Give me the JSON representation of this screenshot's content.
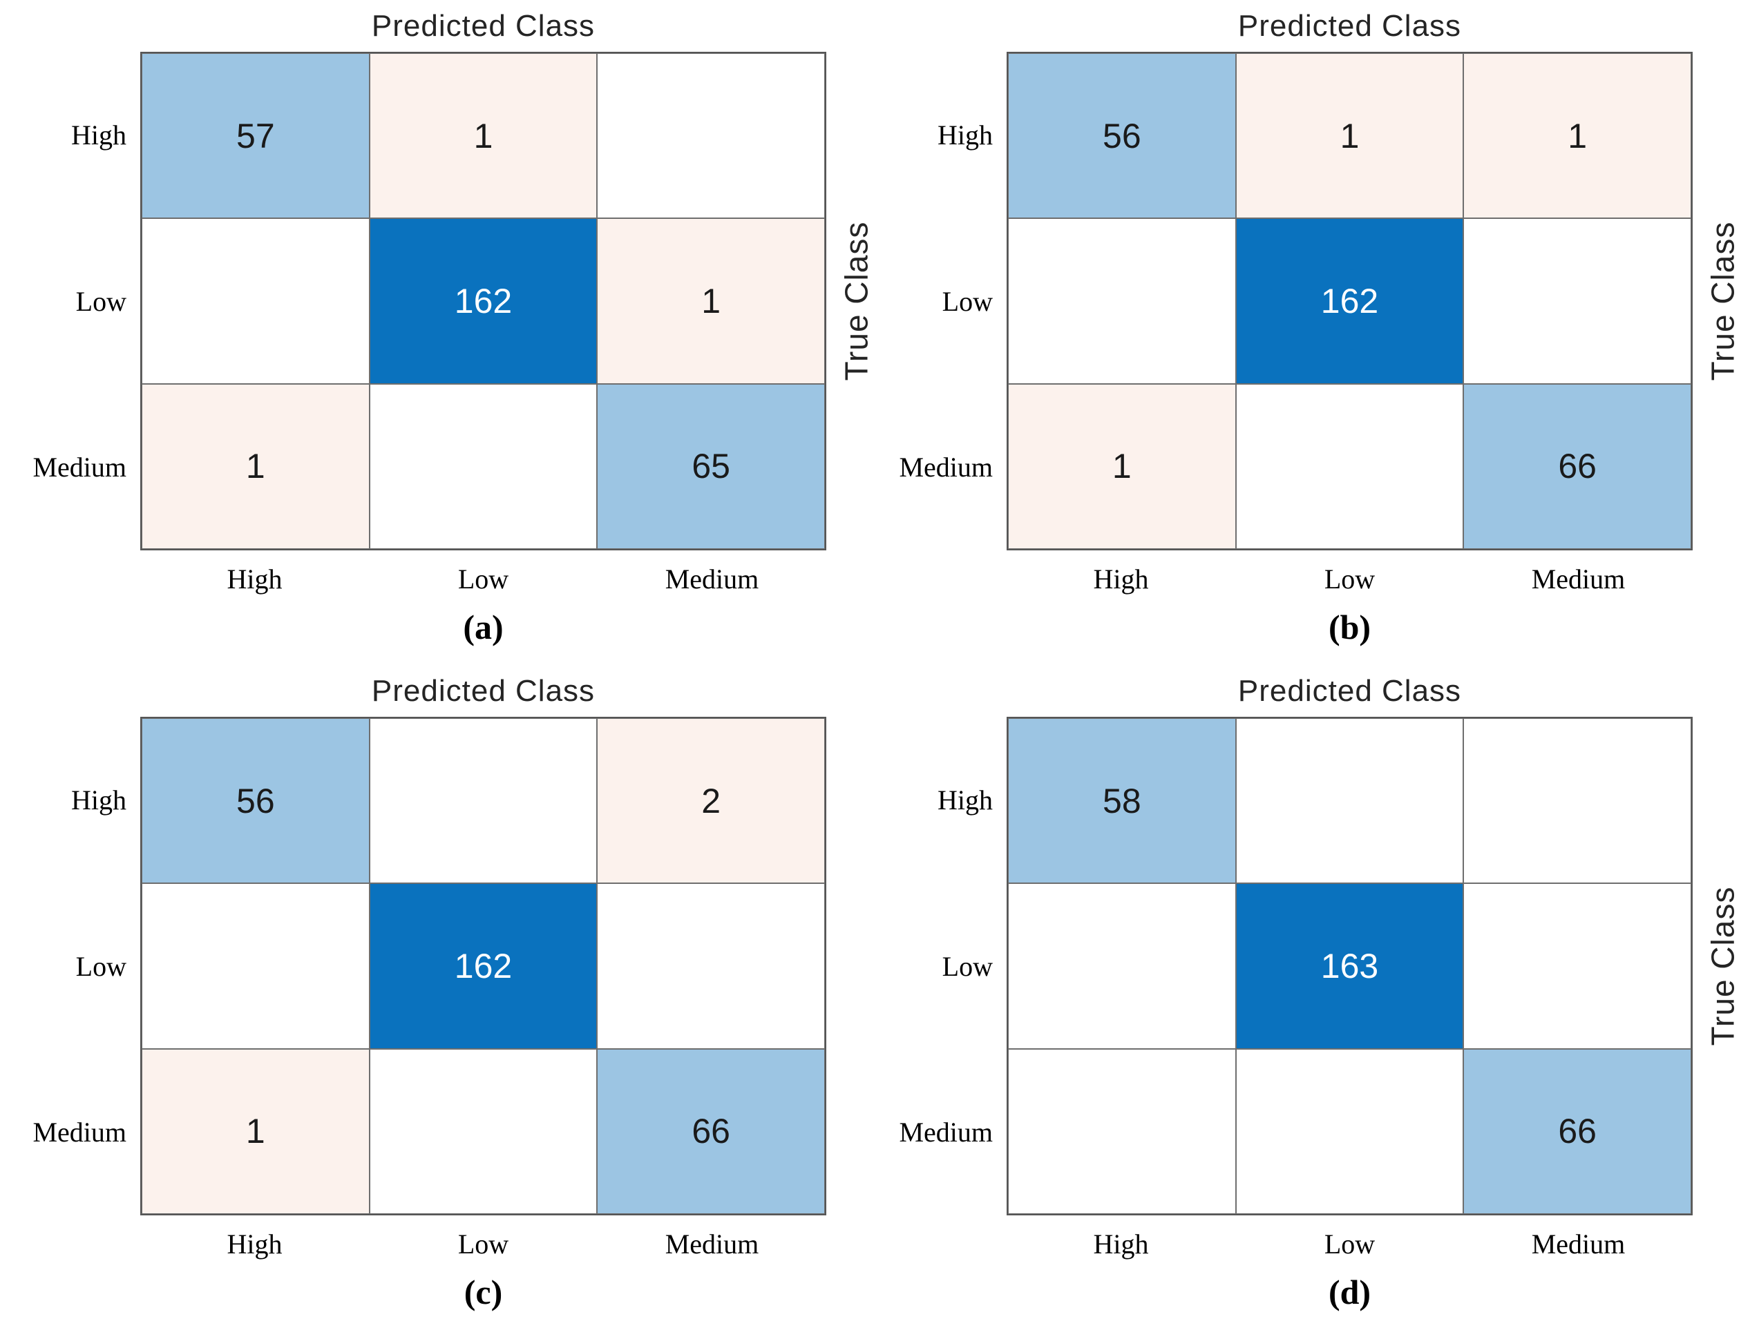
{
  "figure": {
    "background": "#FFFFFF"
  },
  "palette": {
    "diag_strong": "#0A72BE",
    "diag_light": "#9CC5E3",
    "off_tint": "#FCF2ED",
    "empty": "#FFFFFF",
    "text_on_strong": "#FFFFFF",
    "text_default": "#1A1A1A",
    "grid_line": "#6E6E6E"
  },
  "chart_data": [
    {
      "type": "heatmap",
      "subtype": "confusion-matrix",
      "caption": "(a)",
      "title": "Predicted Class",
      "ylabel": "True Class",
      "rows": [
        "High",
        "Low",
        "Medium"
      ],
      "cols": [
        "High",
        "Low",
        "Medium"
      ],
      "matrix": [
        [
          57,
          1,
          0
        ],
        [
          0,
          162,
          1
        ],
        [
          1,
          0,
          65
        ]
      ],
      "zeros_shown_blank": true,
      "legend": "none",
      "grid": true
    },
    {
      "type": "heatmap",
      "subtype": "confusion-matrix",
      "caption": "(b)",
      "title": "Predicted Class",
      "ylabel": "True Class",
      "rows": [
        "High",
        "Low",
        "Medium"
      ],
      "cols": [
        "High",
        "Low",
        "Medium"
      ],
      "matrix": [
        [
          56,
          1,
          1
        ],
        [
          0,
          162,
          0
        ],
        [
          1,
          0,
          66
        ]
      ],
      "zeros_shown_blank": true,
      "legend": "none",
      "grid": true
    },
    {
      "type": "heatmap",
      "subtype": "confusion-matrix",
      "caption": "(c)",
      "title": "Predicted Class",
      "ylabel": "",
      "rows": [
        "High",
        "Low",
        "Medium"
      ],
      "cols": [
        "High",
        "Low",
        "Medium"
      ],
      "matrix": [
        [
          56,
          0,
          2
        ],
        [
          0,
          162,
          0
        ],
        [
          1,
          0,
          66
        ]
      ],
      "zeros_shown_blank": true,
      "legend": "none",
      "grid": true
    },
    {
      "type": "heatmap",
      "subtype": "confusion-matrix",
      "caption": "(d)",
      "title": "Predicted Class",
      "ylabel": "True Class",
      "rows": [
        "High",
        "Low",
        "Medium"
      ],
      "cols": [
        "High",
        "Low",
        "Medium"
      ],
      "matrix": [
        [
          58,
          0,
          0
        ],
        [
          0,
          163,
          0
        ],
        [
          0,
          0,
          66
        ]
      ],
      "zeros_shown_blank": true,
      "legend": "none",
      "grid": true
    }
  ],
  "panels": [
    {
      "title": "Predicted Class",
      "ylabel": "True Class",
      "caption": "(a)",
      "row_labels": [
        "High",
        "Low",
        "Medium"
      ],
      "col_labels": [
        "High",
        "Low",
        "Medium"
      ],
      "cells": [
        [
          {
            "v": "57",
            "tone": "diag_light"
          },
          {
            "v": "1",
            "tone": "off_tint"
          },
          {
            "v": "",
            "tone": "empty"
          }
        ],
        [
          {
            "v": "",
            "tone": "empty"
          },
          {
            "v": "162",
            "tone": "diag_strong"
          },
          {
            "v": "1",
            "tone": "off_tint"
          }
        ],
        [
          {
            "v": "1",
            "tone": "off_tint"
          },
          {
            "v": "",
            "tone": "empty"
          },
          {
            "v": "65",
            "tone": "diag_light"
          }
        ]
      ]
    },
    {
      "title": "Predicted Class",
      "ylabel": "True Class",
      "caption": "(b)",
      "row_labels": [
        "High",
        "Low",
        "Medium"
      ],
      "col_labels": [
        "High",
        "Low",
        "Medium"
      ],
      "cells": [
        [
          {
            "v": "56",
            "tone": "diag_light"
          },
          {
            "v": "1",
            "tone": "off_tint"
          },
          {
            "v": "1",
            "tone": "off_tint"
          }
        ],
        [
          {
            "v": "",
            "tone": "empty"
          },
          {
            "v": "162",
            "tone": "diag_strong"
          },
          {
            "v": "",
            "tone": "empty"
          }
        ],
        [
          {
            "v": "1",
            "tone": "off_tint"
          },
          {
            "v": "",
            "tone": "empty"
          },
          {
            "v": "66",
            "tone": "diag_light"
          }
        ]
      ]
    },
    {
      "title": "Predicted Class",
      "ylabel": "",
      "caption": "(c)",
      "row_labels": [
        "High",
        "Low",
        "Medium"
      ],
      "col_labels": [
        "High",
        "Low",
        "Medium"
      ],
      "cells": [
        [
          {
            "v": "56",
            "tone": "diag_light"
          },
          {
            "v": "",
            "tone": "empty"
          },
          {
            "v": "2",
            "tone": "off_tint"
          }
        ],
        [
          {
            "v": "",
            "tone": "empty"
          },
          {
            "v": "162",
            "tone": "diag_strong"
          },
          {
            "v": "",
            "tone": "empty"
          }
        ],
        [
          {
            "v": "1",
            "tone": "off_tint"
          },
          {
            "v": "",
            "tone": "empty"
          },
          {
            "v": "66",
            "tone": "diag_light"
          }
        ]
      ]
    },
    {
      "title": "Predicted Class",
      "ylabel": "True Class",
      "caption": "(d)",
      "row_labels": [
        "High",
        "Low",
        "Medium"
      ],
      "col_labels": [
        "High",
        "Low",
        "Medium"
      ],
      "cells": [
        [
          {
            "v": "58",
            "tone": "diag_light"
          },
          {
            "v": "",
            "tone": "empty"
          },
          {
            "v": "",
            "tone": "empty"
          }
        ],
        [
          {
            "v": "",
            "tone": "empty"
          },
          {
            "v": "163",
            "tone": "diag_strong"
          },
          {
            "v": "",
            "tone": "empty"
          }
        ],
        [
          {
            "v": "",
            "tone": "empty"
          },
          {
            "v": "",
            "tone": "empty"
          },
          {
            "v": "66",
            "tone": "diag_light"
          }
        ]
      ]
    }
  ]
}
